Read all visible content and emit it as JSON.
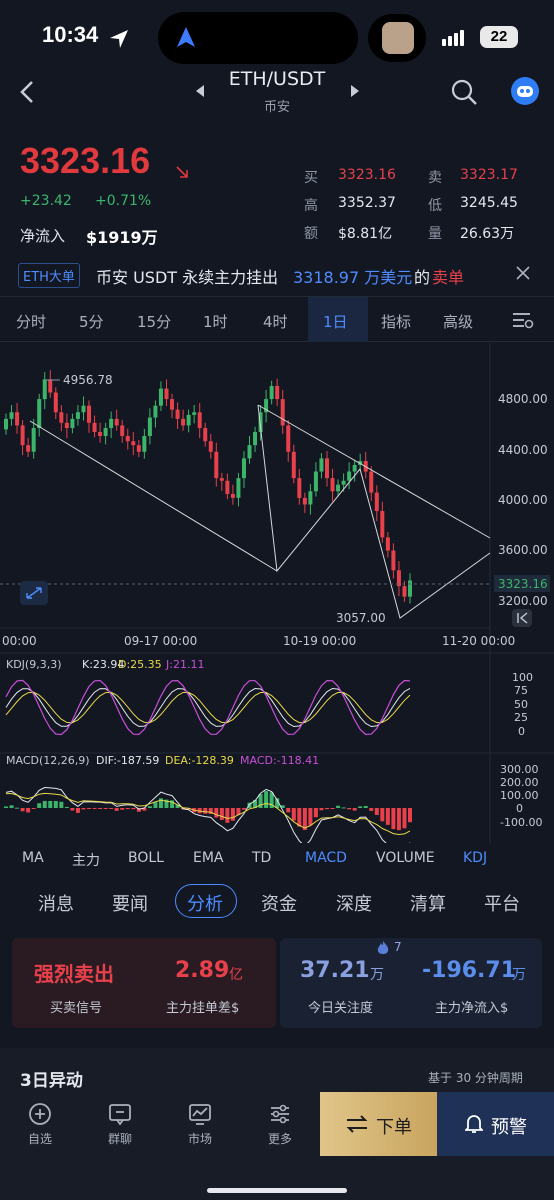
{
  "status_bar": {
    "time": "10:34",
    "battery": "22"
  },
  "header": {
    "pair": "ETH/USDT",
    "exchange": "币安"
  },
  "quote": {
    "price": "3323.16",
    "change": "+23.42",
    "change_pct": "+0.71%",
    "netflow_label": "净流入",
    "netflow_value": "$1919万",
    "buy_label": "买",
    "buy_value": "3323.16",
    "sell_label": "卖",
    "sell_value": "3323.17",
    "high_label": "高",
    "high_value": "3352.37",
    "low_label": "低",
    "low_value": "3245.45",
    "amount_label": "额",
    "amount_value": "$8.81亿",
    "volume_label": "量",
    "volume_value": "26.63万"
  },
  "ticker": {
    "tag": "ETH大单",
    "text_prefix": "币安 USDT 永续主力挂出",
    "amount": "3318.97 万美元",
    "text_mid": "的",
    "action": "卖单"
  },
  "timeframes": [
    "分时",
    "5分",
    "15分",
    "1时",
    "4时",
    "1日",
    "指标",
    "高级"
  ],
  "chart_data": {
    "type": "candlestick",
    "price_axis": [
      "4800.00",
      "4400.00",
      "4000.00",
      "3600.00",
      "3200.00"
    ],
    "current_price": "3323.16",
    "high_marker": "4956.78",
    "low_marker": "3057.00",
    "date_ticks": [
      "00:00",
      "09-17 00:00",
      "10-19 00:00",
      "11-20 00:00"
    ],
    "ylim": [
      3000,
      5050
    ],
    "closes": [
      4550,
      4600,
      4500,
      4350,
      4300,
      4480,
      4700,
      4850,
      4750,
      4600,
      4520,
      4480,
      4550,
      4600,
      4650,
      4520,
      4450,
      4420,
      4480,
      4550,
      4500,
      4420,
      4380,
      4350,
      4300,
      4420,
      4560,
      4650,
      4780,
      4700,
      4620,
      4550,
      4500,
      4580,
      4600,
      4480,
      4380,
      4300,
      4100,
      4080,
      3980,
      3950,
      4100,
      4250,
      4350,
      4450,
      4600,
      4700,
      4800,
      4700,
      4500,
      4300,
      4100,
      3950,
      3900,
      4000,
      4150,
      4250,
      4100,
      4000,
      4050,
      4080,
      4150,
      4200,
      4230,
      4150,
      3990,
      3850,
      3650,
      3550,
      3400,
      3280,
      3200,
      3323
    ],
    "kdj_label": "KDJ(9,3,3)",
    "kdj_k": "K:23.94",
    "kdj_d": "D:25.35",
    "kdj_j": "J:21.11",
    "kdj_axis": [
      "100",
      "75",
      "50",
      "25",
      "0"
    ],
    "macd_label": "MACD(12,26,9)",
    "macd_dif": "DIF:-187.59",
    "macd_dea": "DEA:-128.39",
    "macd_val": "MACD:-118.41",
    "macd_axis": [
      "300.00",
      "200.00",
      "100.00",
      "0",
      "-100.00"
    ]
  },
  "indicators": [
    "MA",
    "主力",
    "BOLL",
    "EMA",
    "TD",
    "MACD",
    "VOLUME",
    "KDJ"
  ],
  "content_tabs": [
    "消息",
    "要闻",
    "分析",
    "资金",
    "深度",
    "清算",
    "平台"
  ],
  "stats": [
    {
      "value": "强烈卖出",
      "unit": "",
      "label": "买卖信号"
    },
    {
      "value": "2.89",
      "unit": "亿",
      "label": "主力挂单差$"
    },
    {
      "value": "37.21",
      "unit": "万",
      "label": "今日关注度",
      "badge": "7"
    },
    {
      "value": "-196.71",
      "unit": "万",
      "label": "主力净流入$"
    }
  ],
  "section": {
    "title": "3日异动",
    "note": "基于 30 分钟周期"
  },
  "bottom_nav": [
    {
      "label": "自选"
    },
    {
      "label": "群聊"
    },
    {
      "label": "市场"
    },
    {
      "label": "更多"
    }
  ],
  "actions": {
    "order": "下单",
    "alert": "预警"
  }
}
